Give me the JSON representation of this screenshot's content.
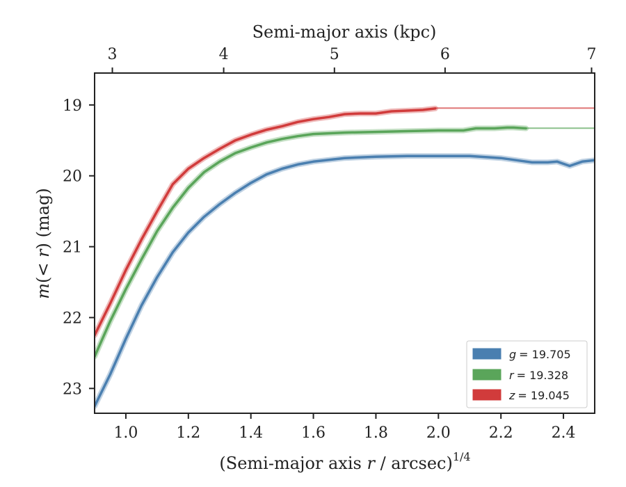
{
  "chart_data": {
    "type": "line",
    "xlabel_bottom": "(Semi-major axis r / arcsec)^{1/4}",
    "xlabel_bottom_parts": [
      "(Semi-major axis ",
      "r",
      " / arcsec)",
      "1/4"
    ],
    "xlabel_top": "Semi-major axis (kpc)",
    "ylabel": "m(< r) (mag)",
    "ylabel_parts": [
      "m",
      "(< ",
      "r",
      ")",
      " (mag)"
    ],
    "xlim": [
      0.9,
      2.5
    ],
    "ylim": [
      23.35,
      18.55
    ],
    "y_inverted": true,
    "xticks_bottom": [
      1.0,
      1.2,
      1.4,
      1.6,
      1.8,
      2.0,
      2.2,
      2.4
    ],
    "xtick_labels_bottom": [
      "1.0",
      "1.2",
      "1.4",
      "1.6",
      "1.8",
      "2.0",
      "2.2",
      "2.4"
    ],
    "xticks_top": [
      {
        "label": "3",
        "x": 0.9568
      },
      {
        "label": "4",
        "x": 1.313
      },
      {
        "label": "5",
        "x": 1.6673
      },
      {
        "label": "6",
        "x": 2.0213
      },
      {
        "label": "7",
        "x": 2.49
      }
    ],
    "yticks": [
      19,
      20,
      21,
      22,
      23
    ],
    "ytick_labels": [
      "19",
      "20",
      "21",
      "22",
      "23"
    ],
    "legend_position": "lower-right",
    "series": [
      {
        "name": "g = 19.705",
        "label_var": "g",
        "label_val": "= 19.705",
        "color": "#4a7fb0",
        "asymptote": 19.705,
        "x": [
          0.9,
          0.95,
          1.0,
          1.05,
          1.1,
          1.15,
          1.2,
          1.25,
          1.3,
          1.35,
          1.4,
          1.45,
          1.5,
          1.55,
          1.6,
          1.7,
          1.8,
          1.9,
          2.0,
          2.1,
          2.2,
          2.25,
          2.3,
          2.35,
          2.38,
          2.42,
          2.46,
          2.5
        ],
        "y": [
          23.25,
          22.8,
          22.3,
          21.83,
          21.43,
          21.08,
          20.8,
          20.58,
          20.4,
          20.24,
          20.1,
          19.98,
          19.9,
          19.84,
          19.8,
          19.75,
          19.73,
          19.72,
          19.72,
          19.72,
          19.75,
          19.78,
          19.81,
          19.81,
          19.8,
          19.86,
          19.8,
          19.78
        ]
      },
      {
        "name": "r = 19.328",
        "label_var": "r",
        "label_val": "= 19.328",
        "color": "#5aa55a",
        "asymptote": 19.328,
        "x": [
          0.9,
          0.95,
          1.0,
          1.05,
          1.1,
          1.15,
          1.2,
          1.25,
          1.3,
          1.35,
          1.4,
          1.45,
          1.5,
          1.55,
          1.6,
          1.7,
          1.8,
          1.9,
          2.0,
          2.08,
          2.12,
          2.18,
          2.22,
          2.24,
          2.28
        ],
        "y": [
          22.55,
          22.05,
          21.6,
          21.18,
          20.78,
          20.45,
          20.17,
          19.95,
          19.8,
          19.68,
          19.6,
          19.53,
          19.48,
          19.44,
          19.41,
          19.39,
          19.38,
          19.37,
          19.36,
          19.36,
          19.33,
          19.33,
          19.32,
          19.32,
          19.33
        ]
      },
      {
        "name": "z = 19.045",
        "label_var": "z",
        "label_val": "= 19.045",
        "color": "#d13b3b",
        "asymptote": 19.045,
        "x": [
          0.9,
          0.95,
          1.0,
          1.05,
          1.1,
          1.15,
          1.2,
          1.25,
          1.3,
          1.35,
          1.4,
          1.45,
          1.5,
          1.55,
          1.6,
          1.65,
          1.7,
          1.75,
          1.8,
          1.85,
          1.9,
          1.95,
          1.99
        ],
        "y": [
          22.25,
          21.8,
          21.33,
          20.9,
          20.5,
          20.12,
          19.9,
          19.75,
          19.62,
          19.5,
          19.42,
          19.35,
          19.3,
          19.24,
          19.2,
          19.17,
          19.13,
          19.12,
          19.12,
          19.09,
          19.08,
          19.07,
          19.05
        ]
      }
    ]
  }
}
